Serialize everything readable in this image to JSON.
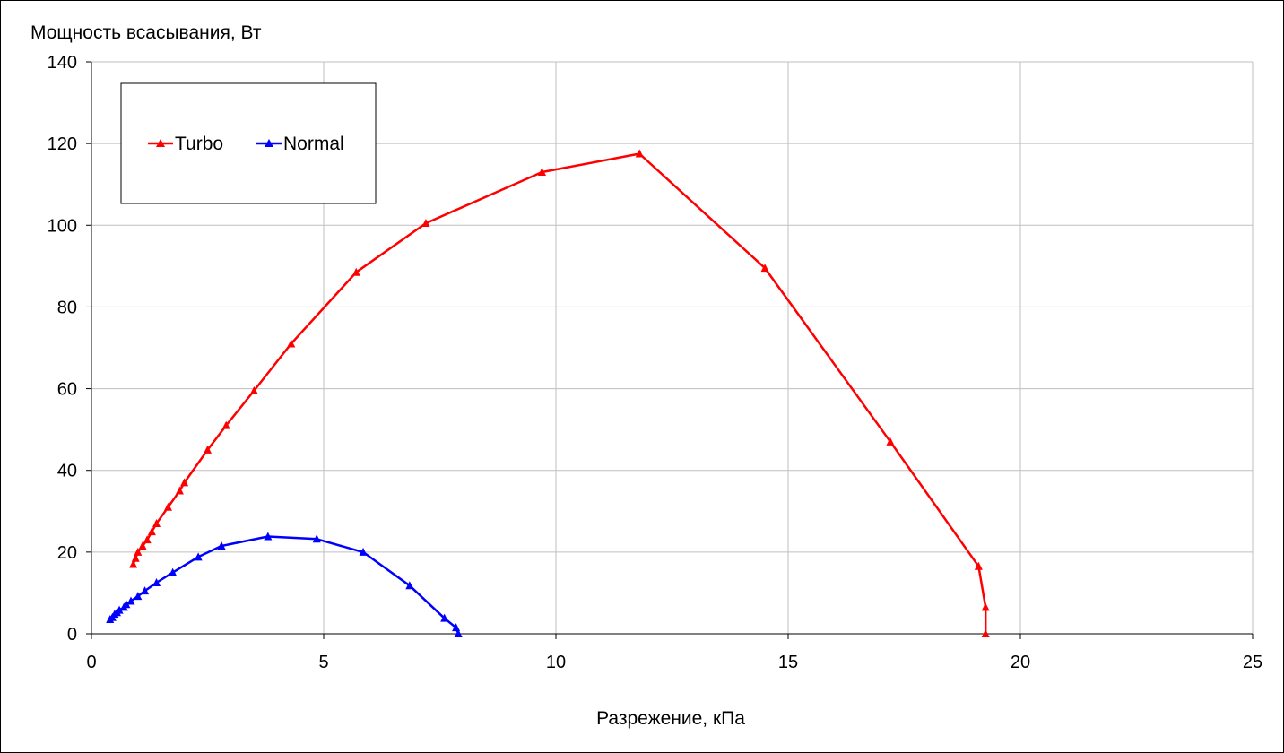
{
  "chart_data": {
    "type": "line",
    "ylabel": "Мощность всасывания, Вт",
    "xlabel": "Разрежение, кПа",
    "xlim": [
      0,
      25
    ],
    "ylim": [
      0,
      140
    ],
    "xticks": [
      0,
      5,
      10,
      15,
      20,
      25
    ],
    "yticks": [
      0,
      20,
      40,
      60,
      80,
      100,
      120,
      140
    ],
    "grid": true,
    "legend_position": "top-left",
    "series": [
      {
        "name": "Turbo",
        "color": "#ff0000",
        "marker": "triangle",
        "points": [
          [
            0.9,
            17.0
          ],
          [
            0.95,
            18.5
          ],
          [
            1.0,
            20.0
          ],
          [
            1.1,
            21.5
          ],
          [
            1.2,
            23.0
          ],
          [
            1.3,
            25.0
          ],
          [
            1.4,
            27.0
          ],
          [
            1.65,
            31.0
          ],
          [
            1.9,
            35.0
          ],
          [
            2.0,
            37.0
          ],
          [
            2.5,
            45.0
          ],
          [
            2.9,
            51.0
          ],
          [
            3.5,
            59.5
          ],
          [
            4.3,
            71.0
          ],
          [
            5.7,
            88.5
          ],
          [
            7.2,
            100.5
          ],
          [
            9.7,
            113.0
          ],
          [
            11.8,
            117.5
          ],
          [
            14.5,
            89.5
          ],
          [
            17.2,
            47.0
          ],
          [
            19.1,
            16.5
          ],
          [
            19.25,
            6.5
          ],
          [
            19.25,
            0.0
          ]
        ]
      },
      {
        "name": "Normal",
        "color": "#0000ff",
        "marker": "triangle",
        "points": [
          [
            0.4,
            3.5
          ],
          [
            0.45,
            4.0
          ],
          [
            0.5,
            4.8
          ],
          [
            0.55,
            5.2
          ],
          [
            0.6,
            5.8
          ],
          [
            0.7,
            6.5
          ],
          [
            0.75,
            7.2
          ],
          [
            0.85,
            8.0
          ],
          [
            1.0,
            9.2
          ],
          [
            1.15,
            10.5
          ],
          [
            1.4,
            12.5
          ],
          [
            1.75,
            15.0
          ],
          [
            2.3,
            18.8
          ],
          [
            2.8,
            21.5
          ],
          [
            3.8,
            23.8
          ],
          [
            4.85,
            23.2
          ],
          [
            5.85,
            20.0
          ],
          [
            6.85,
            11.8
          ],
          [
            7.6,
            3.8
          ],
          [
            7.85,
            1.5
          ],
          [
            7.9,
            0.0
          ]
        ]
      }
    ]
  }
}
